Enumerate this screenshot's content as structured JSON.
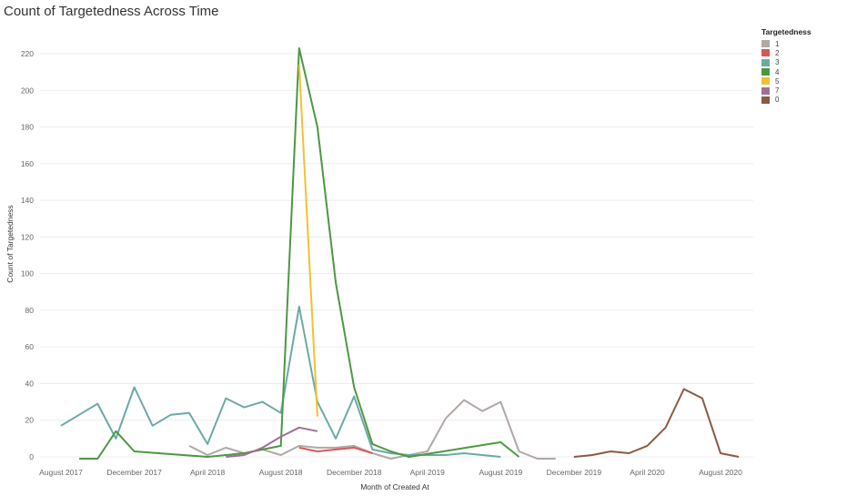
{
  "chart_data": {
    "type": "line",
    "title": "Count of Targetedness Across Time",
    "xlabel": "Month of Created At",
    "ylabel": "Count of Targetedness",
    "ylim": [
      0,
      230
    ],
    "y_ticks": [
      0,
      20,
      40,
      60,
      80,
      100,
      120,
      140,
      160,
      180,
      200,
      220
    ],
    "x_ticks": [
      {
        "label": "August 2017",
        "month": "2017-08"
      },
      {
        "label": "December 2017",
        "month": "2017-12"
      },
      {
        "label": "April 2018",
        "month": "2018-04"
      },
      {
        "label": "August 2018",
        "month": "2018-08"
      },
      {
        "label": "December 2018",
        "month": "2018-12"
      },
      {
        "label": "April 2019",
        "month": "2019-04"
      },
      {
        "label": "August 2019",
        "month": "2019-08"
      },
      {
        "label": "December 2019",
        "month": "2019-12"
      },
      {
        "label": "April 2020",
        "month": "2020-04"
      },
      {
        "label": "August 2020",
        "month": "2020-08"
      }
    ],
    "x_range": [
      "2017-07",
      "2020-10"
    ],
    "grid": true,
    "legend": {
      "title": "Targetedness",
      "placement": "top-right"
    },
    "series": [
      {
        "name": "1",
        "color": "#b0a8a5",
        "points": [
          [
            "2018-03",
            6
          ],
          [
            "2018-04",
            1
          ],
          [
            "2018-05",
            5
          ],
          [
            "2018-06",
            2
          ],
          [
            "2018-07",
            4
          ],
          [
            "2018-08",
            1
          ],
          [
            "2018-09",
            6
          ],
          [
            "2018-10",
            5
          ],
          [
            "2018-11",
            5
          ],
          [
            "2018-12",
            6
          ],
          [
            "2019-01",
            2
          ],
          [
            "2019-02",
            -1
          ],
          [
            "2019-03",
            1
          ],
          [
            "2019-04",
            3
          ],
          [
            "2019-05",
            21
          ],
          [
            "2019-06",
            31
          ],
          [
            "2019-07",
            25
          ],
          [
            "2019-08",
            30
          ],
          [
            "2019-09",
            3
          ],
          [
            "2019-10",
            -1
          ],
          [
            "2019-11",
            -1
          ]
        ]
      },
      {
        "name": "2",
        "color": "#d95758",
        "points": [
          [
            "2018-09",
            5
          ],
          [
            "2018-10",
            3
          ],
          [
            "2018-11",
            4
          ],
          [
            "2018-12",
            5
          ],
          [
            "2019-01",
            2
          ]
        ]
      },
      {
        "name": "3",
        "color": "#6ba9a8",
        "points": [
          [
            "2017-08",
            17
          ],
          [
            "2017-09",
            23
          ],
          [
            "2017-10",
            29
          ],
          [
            "2017-11",
            10
          ],
          [
            "2017-12",
            38
          ],
          [
            "2018-01",
            17
          ],
          [
            "2018-02",
            23
          ],
          [
            "2018-03",
            24
          ],
          [
            "2018-04",
            7
          ],
          [
            "2018-05",
            32
          ],
          [
            "2018-06",
            27
          ],
          [
            "2018-07",
            30
          ],
          [
            "2018-08",
            24
          ],
          [
            "2018-09",
            82
          ],
          [
            "2018-10",
            30
          ],
          [
            "2018-11",
            10
          ],
          [
            "2018-12",
            33
          ],
          [
            "2019-01",
            4
          ],
          [
            "2019-02",
            2
          ],
          [
            "2019-03",
            1
          ],
          [
            "2019-04",
            1
          ],
          [
            "2019-05",
            1
          ],
          [
            "2019-06",
            2
          ],
          [
            "2019-07",
            1
          ],
          [
            "2019-08",
            0
          ]
        ]
      },
      {
        "name": "4",
        "color": "#4c9842",
        "points": [
          [
            "2017-09",
            -1
          ],
          [
            "2017-10",
            -1
          ],
          [
            "2017-11",
            14
          ],
          [
            "2017-12",
            3
          ],
          [
            "2018-04",
            0
          ],
          [
            "2018-06",
            2
          ],
          [
            "2018-07",
            4
          ],
          [
            "2018-08",
            6
          ],
          [
            "2018-09",
            223
          ],
          [
            "2018-10",
            180
          ],
          [
            "2018-11",
            95
          ],
          [
            "2018-12",
            38
          ],
          [
            "2019-01",
            7
          ],
          [
            "2019-02",
            3
          ],
          [
            "2019-03",
            0
          ],
          [
            "2019-08",
            8
          ],
          [
            "2019-09",
            0
          ]
        ]
      },
      {
        "name": "5",
        "color": "#f0c133",
        "points": [
          [
            "2018-09",
            214
          ],
          [
            "2018-10",
            22
          ]
        ]
      },
      {
        "name": "7",
        "color": "#a06f96",
        "points": [
          [
            "2018-05",
            0
          ],
          [
            "2018-06",
            1
          ],
          [
            "2018-07",
            5
          ],
          [
            "2018-08",
            11
          ],
          [
            "2018-09",
            16
          ],
          [
            "2018-10",
            14
          ]
        ]
      },
      {
        "name": "0",
        "color": "#8a5a44",
        "points": [
          [
            "2019-12",
            0
          ],
          [
            "2020-01",
            1
          ],
          [
            "2020-02",
            3
          ],
          [
            "2020-03",
            2
          ],
          [
            "2020-04",
            6
          ],
          [
            "2020-05",
            16
          ],
          [
            "2020-06",
            37
          ],
          [
            "2020-07",
            32
          ],
          [
            "2020-08",
            2
          ],
          [
            "2020-09",
            0
          ]
        ]
      }
    ]
  },
  "legend_items": [
    "1",
    "2",
    "3",
    "4",
    "5",
    "7",
    "0"
  ]
}
